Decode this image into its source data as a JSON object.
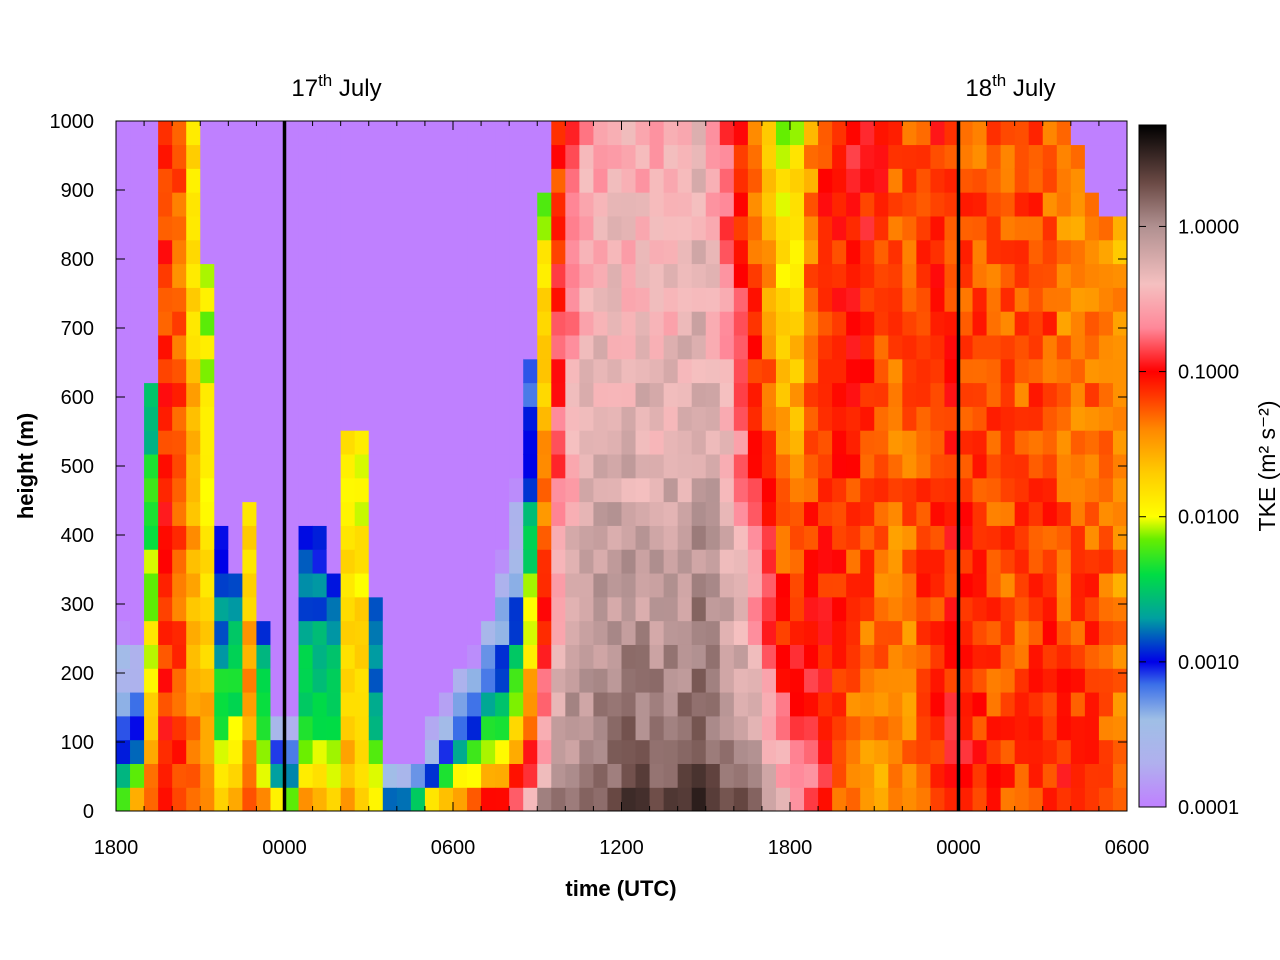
{
  "chart_data": {
    "type": "heatmap",
    "xlabel": "time (UTC)",
    "ylabel": "height (m)",
    "x_hours_range": [
      0,
      36
    ],
    "x_ticks": [
      {
        "hour": 0,
        "label": "1800"
      },
      {
        "hour": 6,
        "label": "0000"
      },
      {
        "hour": 12,
        "label": "0600"
      },
      {
        "hour": 18,
        "label": "1200"
      },
      {
        "hour": 24,
        "label": "1800"
      },
      {
        "hour": 30,
        "label": "0000"
      },
      {
        "hour": 36,
        "label": "0600"
      }
    ],
    "ylim": [
      0,
      1000
    ],
    "y_ticks": [
      0,
      100,
      200,
      300,
      400,
      500,
      600,
      700,
      800,
      900,
      1000
    ],
    "colorbar": {
      "label": "TKE (m² s⁻²)",
      "scale": "log",
      "range": [
        0.0001,
        5
      ],
      "ticks": [
        {
          "value": 0.0001,
          "label": "0.0001"
        },
        {
          "value": 0.001,
          "label": "0.0010"
        },
        {
          "value": 0.01,
          "label": "0.0100"
        },
        {
          "value": 0.1,
          "label": "0.1000"
        },
        {
          "value": 1.0,
          "label": "1.0000"
        }
      ],
      "palette": [
        {
          "value": 0.0001,
          "color": "#bf80ff"
        },
        {
          "value": 0.0002,
          "color": "#b0b0ee"
        },
        {
          "value": 0.0004,
          "color": "#9fbfe6"
        },
        {
          "value": 0.0007,
          "color": "#3b6fe8"
        },
        {
          "value": 0.001,
          "color": "#0000e8"
        },
        {
          "value": 0.002,
          "color": "#00a0a0"
        },
        {
          "value": 0.004,
          "color": "#00dd44"
        },
        {
          "value": 0.007,
          "color": "#66ee00"
        },
        {
          "value": 0.01,
          "color": "#ffff00"
        },
        {
          "value": 0.02,
          "color": "#ffcc00"
        },
        {
          "value": 0.04,
          "color": "#ff8800"
        },
        {
          "value": 0.07,
          "color": "#ff3300"
        },
        {
          "value": 0.1,
          "color": "#ff0000"
        },
        {
          "value": 0.2,
          "color": "#ff8899"
        },
        {
          "value": 0.4,
          "color": "#f5c0c0"
        },
        {
          "value": 1.0,
          "color": "#b09090"
        },
        {
          "value": 2.0,
          "color": "#6b4a45"
        },
        {
          "value": 5.0,
          "color": "#000000"
        }
      ]
    },
    "annotations": [
      {
        "hour": 6,
        "base": "17",
        "sup": "th",
        "rest": " July"
      },
      {
        "hour": 30,
        "base": "18",
        "sup": "th",
        "rest": " July"
      }
    ],
    "vertical_lines_hours": [
      6,
      30
    ],
    "cell_width_hours": 0.5,
    "cell_height_m": 34.5,
    "tke_profile_log10": [
      {
        "hour": 0.0,
        "top": 300,
        "surf": -1.8,
        "aloft": -4
      },
      {
        "hour": 0.5,
        "top": 300,
        "surf": -1.3,
        "aloft": -4
      },
      {
        "hour": 1.0,
        "top": 220,
        "surf": -0.8,
        "aloft": -4
      },
      {
        "hour": 1.5,
        "top": 1000,
        "surf": -1.0,
        "aloft": -1.3
      },
      {
        "hour": 2.0,
        "top": 1000,
        "surf": -1.1,
        "aloft": -1.0
      },
      {
        "hour": 2.5,
        "top": 1000,
        "surf": -1.2,
        "aloft": -1.6
      },
      {
        "hour": 3.0,
        "top": 1000,
        "surf": -1.3,
        "aloft": -2.0
      },
      {
        "hour": 3.5,
        "top": 600,
        "surf": -1.4,
        "aloft": -2.2
      },
      {
        "hour": 4.0,
        "top": 220,
        "surf": -1.2,
        "aloft": -4
      },
      {
        "hour": 4.5,
        "top": 450,
        "surf": -1.1,
        "aloft": -1.7
      },
      {
        "hour": 5.0,
        "top": 420,
        "surf": -1.2,
        "aloft": -1.8
      },
      {
        "hour": 5.5,
        "top": 160,
        "surf": -1.2,
        "aloft": -4
      },
      {
        "hour": 6.5,
        "top": 140,
        "surf": -1.2,
        "aloft": -4
      },
      {
        "hour": 7.0,
        "top": 720,
        "surf": -1.4,
        "aloft": -2.2
      },
      {
        "hour": 7.5,
        "top": 120,
        "surf": -1.4,
        "aloft": -4
      },
      {
        "hour": 8.0,
        "top": 560,
        "surf": -1.5,
        "aloft": -1.9
      },
      {
        "hour": 8.5,
        "top": 560,
        "surf": -1.6,
        "aloft": -1.9
      },
      {
        "hour": 9.0,
        "top": 560,
        "surf": -1.7,
        "aloft": -2.0
      },
      {
        "hour": 9.5,
        "top": 90,
        "surf": -1.8,
        "aloft": -4
      },
      {
        "hour": 10.5,
        "top": 60,
        "surf": -1.9,
        "aloft": -4
      },
      {
        "hour": 11.0,
        "top": 110,
        "surf": -1.0,
        "aloft": -4
      },
      {
        "hour": 12.0,
        "top": 200,
        "surf": -0.6,
        "aloft": -4
      },
      {
        "hour": 13.0,
        "top": 270,
        "surf": -0.3,
        "aloft": -4
      },
      {
        "hour": 14.0,
        "top": 420,
        "surf": -0.1,
        "aloft": -4
      },
      {
        "hour": 14.5,
        "top": 560,
        "surf": 0.0,
        "aloft": -4
      },
      {
        "hour": 15.5,
        "top": 1000,
        "surf": 0.2,
        "aloft": -1.4
      },
      {
        "hour": 16.5,
        "top": 1000,
        "surf": 0.3,
        "aloft": -0.6
      },
      {
        "hour": 18.0,
        "top": 1000,
        "surf": 0.4,
        "aloft": -0.5
      },
      {
        "hour": 19.5,
        "top": 1000,
        "surf": 0.4,
        "aloft": -0.6
      },
      {
        "hour": 21.0,
        "top": 1000,
        "surf": 0.5,
        "aloft": -0.4
      },
      {
        "hour": 22.0,
        "top": 1000,
        "surf": 0.5,
        "aloft": -1.0
      },
      {
        "hour": 23.0,
        "top": 1000,
        "surf": 0.2,
        "aloft": -1.6
      },
      {
        "hour": 24.0,
        "top": 1000,
        "surf": -0.2,
        "aloft": -2.2
      },
      {
        "hour": 25.0,
        "top": 1000,
        "surf": -0.8,
        "aloft": -1.2
      },
      {
        "hour": 26.0,
        "top": 1000,
        "surf": -1.4,
        "aloft": -1.0
      },
      {
        "hour": 27.0,
        "top": 1000,
        "surf": -1.6,
        "aloft": -1.0
      },
      {
        "hour": 28.0,
        "top": 1000,
        "surf": -1.5,
        "aloft": -1.3
      },
      {
        "hour": 29.0,
        "top": 1000,
        "surf": -1.2,
        "aloft": -1.1
      },
      {
        "hour": 30.0,
        "top": 1000,
        "surf": -0.9,
        "aloft": -1.2
      },
      {
        "hour": 31.0,
        "top": 1000,
        "surf": -1.1,
        "aloft": -1.3
      },
      {
        "hour": 32.0,
        "top": 1000,
        "surf": -1.2,
        "aloft": -1.3
      },
      {
        "hour": 33.0,
        "top": 1000,
        "surf": -1.1,
        "aloft": -1.2
      },
      {
        "hour": 34.0,
        "top": 1000,
        "surf": -1.0,
        "aloft": -1.5
      },
      {
        "hour": 35.0,
        "top": 880,
        "surf": -1.1,
        "aloft": -1.3
      },
      {
        "hour": 36.0,
        "top": 860,
        "surf": -1.3,
        "aloft": -1.6
      }
    ]
  }
}
